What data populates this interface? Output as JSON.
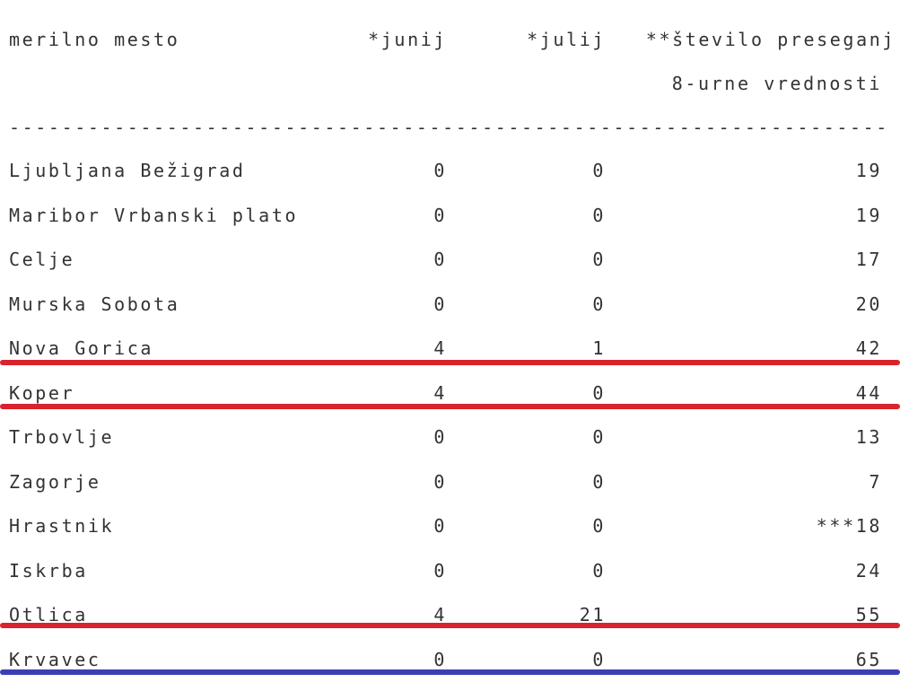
{
  "header": {
    "columns": [
      "merilno mesto",
      "*junij",
      "*julij",
      "**število preseganj"
    ],
    "subheader": "8-urne vrednosti"
  },
  "separator": "-------------------------------------------------------------------",
  "table": {
    "rows": [
      [
        "Ljubljana Bežigrad",
        0,
        0,
        19
      ],
      [
        "Maribor Vrbanski plato",
        0,
        0,
        19
      ],
      [
        "Celje",
        0,
        0,
        17
      ],
      [
        "Murska Sobota",
        0,
        0,
        20
      ],
      [
        "Nova Gorica",
        4,
        1,
        42
      ],
      [
        "Koper",
        4,
        0,
        44
      ],
      [
        "Trbovlje",
        0,
        0,
        13
      ],
      [
        "Zagorje",
        0,
        0,
        7
      ],
      [
        "Hrastnik",
        0,
        0,
        "***18"
      ],
      [
        "Iskrba",
        0,
        0,
        24
      ],
      [
        "Otlica",
        4,
        21,
        55
      ],
      [
        "Krvavec",
        0,
        0,
        65
      ]
    ]
  }
}
